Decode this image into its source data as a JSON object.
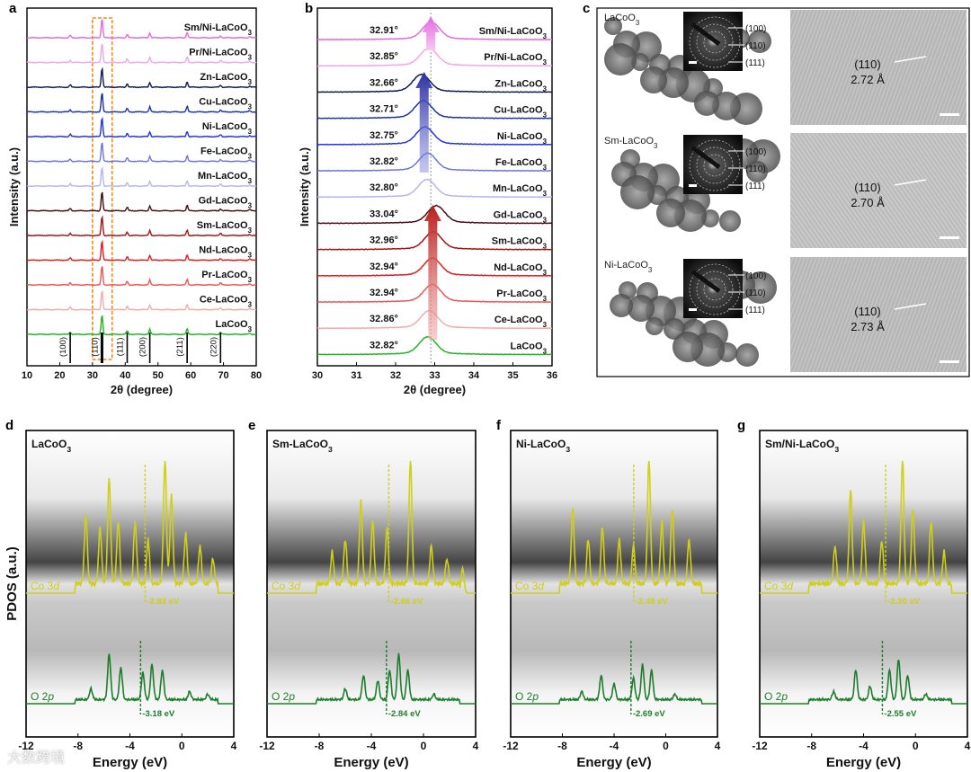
{
  "figure": {
    "watermark": "大数跨境",
    "panel_letters": [
      "a",
      "b",
      "c",
      "d",
      "e",
      "f",
      "g"
    ]
  },
  "chart_data": [
    {
      "id": "a",
      "type": "line",
      "title": "",
      "xlabel": "2θ (degree)",
      "ylabel": "Intensity (a.u.)",
      "xlim": [
        10,
        80
      ],
      "xticks": [
        10,
        20,
        30,
        40,
        50,
        60,
        70,
        80
      ],
      "series": [
        {
          "name": "Sm/Ni-LaCoO3",
          "color": "#e36ae0"
        },
        {
          "name": "Pr/Ni-LaCoO3",
          "color": "#f1a6ea"
        },
        {
          "name": "Zn-LaCoO3",
          "color": "#111a50"
        },
        {
          "name": "Cu-LaCoO3",
          "color": "#1c33a8"
        },
        {
          "name": "Ni-LaCoO3",
          "color": "#2233e6"
        },
        {
          "name": "Fe-LaCoO3",
          "color": "#6c74e0"
        },
        {
          "name": "Mn-LaCoO3",
          "color": "#b3b6f0"
        },
        {
          "name": "Gd-LaCoO3",
          "color": "#4a0d0d"
        },
        {
          "name": "Sm-LaCoO3",
          "color": "#a31414"
        },
        {
          "name": "Nd-LaCoO3",
          "color": "#e31a1a"
        },
        {
          "name": "Pr-LaCoO3",
          "color": "#ea5656"
        },
        {
          "name": "Ce-LaCoO3",
          "color": "#f4aaaa"
        },
        {
          "name": "LaCoO3",
          "color": "#22b522"
        }
      ],
      "peaks": [
        {
          "x": 23.2,
          "h": 0.12
        },
        {
          "x": 32.9,
          "h": 1.0
        },
        {
          "x": 40.6,
          "h": 0.18
        },
        {
          "x": 47.5,
          "h": 0.25
        },
        {
          "x": 58.9,
          "h": 0.28
        },
        {
          "x": 69.1,
          "h": 0.1
        },
        {
          "x": 78.0,
          "h": 0.06
        }
      ],
      "reference_ticks": [
        {
          "x": 23.2,
          "label": "(100)"
        },
        {
          "x": 32.9,
          "label": "(110)"
        },
        {
          "x": 40.6,
          "label": "(111)"
        },
        {
          "x": 47.5,
          "label": "(200)"
        },
        {
          "x": 58.9,
          "label": "(211)"
        },
        {
          "x": 69.1,
          "label": "(220)"
        }
      ],
      "highlight_range": [
        30,
        36
      ]
    },
    {
      "id": "b",
      "type": "line",
      "title": "",
      "xlabel": "2θ (degree)",
      "ylabel": "Intensity (a.u.)",
      "xlim": [
        30,
        36
      ],
      "xticks": [
        30,
        31,
        32,
        33,
        34,
        35,
        36
      ],
      "reference_line": 32.9,
      "series": [
        {
          "name": "Sm/Ni-LaCoO3",
          "peak": 32.91,
          "label": "32.91°",
          "color": "#e36ae0"
        },
        {
          "name": "Pr/Ni-LaCoO3",
          "peak": 32.85,
          "label": "32.85°",
          "color": "#f1a6ea"
        },
        {
          "name": "Zn-LaCoO3",
          "peak": 32.66,
          "label": "32.66°",
          "color": "#111a50"
        },
        {
          "name": "Cu-LaCoO3",
          "peak": 32.71,
          "label": "32.71°",
          "color": "#1c33a8"
        },
        {
          "name": "Ni-LaCoO3",
          "peak": 32.75,
          "label": "32.75°",
          "color": "#2233e6"
        },
        {
          "name": "Fe-LaCoO3",
          "peak": 32.82,
          "label": "32.82°",
          "color": "#6c74e0"
        },
        {
          "name": "Mn-LaCoO3",
          "peak": 32.8,
          "label": "32.80°",
          "color": "#b3b6f0"
        },
        {
          "name": "Gd-LaCoO3",
          "peak": 33.04,
          "label": "33.04°",
          "color": "#4a0d0d"
        },
        {
          "name": "Sm-LaCoO3",
          "peak": 32.96,
          "label": "32.96°",
          "color": "#a31414"
        },
        {
          "name": "Nd-LaCoO3",
          "peak": 32.94,
          "label": "32.94°",
          "color": "#e31a1a"
        },
        {
          "name": "Pr-LaCoO3",
          "peak": 32.94,
          "label": "32.94°",
          "color": "#ea5656"
        },
        {
          "name": "Ce-LaCoO3",
          "peak": 32.86,
          "label": "32.86°",
          "color": "#f4aaaa"
        },
        {
          "name": "LaCoO3",
          "peak": 32.82,
          "label": "32.82°",
          "color": "#22b522"
        }
      ]
    },
    {
      "id": "c",
      "type": "other",
      "description_labels": true,
      "rows": [
        {
          "sample": "LaCoO3",
          "plane": "(110)",
          "d_spacing": "2.72 Å",
          "rings": [
            "(100)",
            "(110)",
            "(111)"
          ]
        },
        {
          "sample": "Sm-LaCoO3",
          "plane": "(110)",
          "d_spacing": "2.70 Å",
          "rings": [
            "(100)",
            "(110)",
            "(111)"
          ]
        },
        {
          "sample": "Ni-LaCoO3",
          "plane": "(110)",
          "d_spacing": "2.73 Å",
          "rings": [
            "(100)",
            "(110)",
            "(111)"
          ]
        }
      ]
    },
    {
      "id": "d",
      "type": "line",
      "title": "LaCoO3",
      "xlabel": "Energy (eV)",
      "ylabel": "PDOS (a.u.)",
      "xlim": [
        -12,
        4
      ],
      "xticks": [
        -12,
        -8,
        -4,
        0,
        4
      ],
      "series": [
        {
          "name": "Co 3d",
          "color": "#cfcf1c",
          "center": -2.83,
          "center_label": "-2.83 eV",
          "peaks": [
            [
              -7.4,
              0.55
            ],
            [
              -6.3,
              0.45
            ],
            [
              -5.6,
              0.85
            ],
            [
              -4.9,
              0.5
            ],
            [
              -3.6,
              0.5
            ],
            [
              -2.6,
              0.35
            ],
            [
              -1.3,
              1.0
            ],
            [
              -0.8,
              0.7
            ],
            [
              0.3,
              0.4
            ],
            [
              1.4,
              0.3
            ],
            [
              2.4,
              0.2
            ]
          ]
        },
        {
          "name": "O 2p",
          "color": "#1e7d2c",
          "center": -3.18,
          "center_label": "-3.18 eV",
          "peaks": [
            [
              -7.0,
              0.2
            ],
            [
              -5.6,
              0.85
            ],
            [
              -4.7,
              0.6
            ],
            [
              -3.0,
              0.5
            ],
            [
              -2.3,
              0.65
            ],
            [
              -1.5,
              0.55
            ],
            [
              0.6,
              0.15
            ],
            [
              2.0,
              0.1
            ]
          ]
        }
      ]
    },
    {
      "id": "e",
      "type": "line",
      "title": "Sm-LaCoO3",
      "xlabel": "Energy (eV)",
      "ylabel": "",
      "xlim": [
        -12,
        4
      ],
      "xticks": [
        -12,
        -8,
        -4,
        0,
        4
      ],
      "series": [
        {
          "name": "Co 3d",
          "color": "#cfcf1c",
          "center": -2.66,
          "center_label": "-2.66 eV",
          "peaks": [
            [
              -7.0,
              0.25
            ],
            [
              -6.0,
              0.35
            ],
            [
              -4.8,
              0.65
            ],
            [
              -3.9,
              0.5
            ],
            [
              -2.8,
              0.45
            ],
            [
              -1.0,
              1.0
            ],
            [
              0.6,
              0.3
            ],
            [
              1.8,
              0.2
            ],
            [
              3.0,
              0.2
            ]
          ]
        },
        {
          "name": "O 2p",
          "color": "#1e7d2c",
          "center": -2.84,
          "center_label": "-2.84 eV",
          "peaks": [
            [
              -6.0,
              0.2
            ],
            [
              -4.6,
              0.45
            ],
            [
              -3.5,
              0.35
            ],
            [
              -2.6,
              0.55
            ],
            [
              -1.9,
              0.85
            ],
            [
              -1.2,
              0.55
            ],
            [
              0.8,
              0.1
            ]
          ]
        }
      ]
    },
    {
      "id": "f",
      "type": "line",
      "title": "Ni-LaCoO3",
      "xlabel": "Energy (eV)",
      "ylabel": "",
      "xlim": [
        -12,
        4
      ],
      "xticks": [
        -12,
        -8,
        -4,
        0,
        4
      ],
      "series": [
        {
          "name": "Co 3d",
          "color": "#cfcf1c",
          "center": -2.48,
          "center_label": "-2.48 eV",
          "peaks": [
            [
              -7.2,
              0.6
            ],
            [
              -6.0,
              0.35
            ],
            [
              -4.9,
              0.45
            ],
            [
              -3.6,
              0.35
            ],
            [
              -2.5,
              0.3
            ],
            [
              -1.3,
              1.0
            ],
            [
              -0.3,
              0.5
            ],
            [
              0.5,
              0.6
            ],
            [
              1.8,
              0.35
            ]
          ]
        },
        {
          "name": "O 2p",
          "color": "#1e7d2c",
          "center": -2.69,
          "center_label": "-2.69 eV",
          "peaks": [
            [
              -6.5,
              0.15
            ],
            [
              -5.0,
              0.45
            ],
            [
              -4.0,
              0.3
            ],
            [
              -2.5,
              0.4
            ],
            [
              -1.8,
              0.65
            ],
            [
              -1.1,
              0.55
            ],
            [
              0.7,
              0.1
            ]
          ]
        }
      ]
    },
    {
      "id": "g",
      "type": "line",
      "title": "Sm/Ni-LaCoO3",
      "xlabel": "Energy (eV)",
      "ylabel": "",
      "xlim": [
        -12,
        4
      ],
      "xticks": [
        -12,
        -8,
        -4,
        0,
        4
      ],
      "series": [
        {
          "name": "Co 3d",
          "color": "#cfcf1c",
          "center": -2.3,
          "center_label": "-2.30 eV",
          "peaks": [
            [
              -6.2,
              0.3
            ],
            [
              -5.0,
              0.75
            ],
            [
              -4.0,
              0.5
            ],
            [
              -2.6,
              0.35
            ],
            [
              -1.0,
              1.0
            ],
            [
              -0.2,
              0.6
            ],
            [
              1.2,
              0.5
            ],
            [
              2.2,
              0.25
            ]
          ]
        },
        {
          "name": "O 2p",
          "color": "#1e7d2c",
          "center": -2.55,
          "center_label": "-2.55 eV",
          "peaks": [
            [
              -6.3,
              0.15
            ],
            [
              -4.6,
              0.55
            ],
            [
              -3.5,
              0.25
            ],
            [
              -2.0,
              0.55
            ],
            [
              -1.3,
              0.75
            ],
            [
              -0.6,
              0.45
            ],
            [
              0.8,
              0.1
            ]
          ]
        }
      ]
    }
  ]
}
